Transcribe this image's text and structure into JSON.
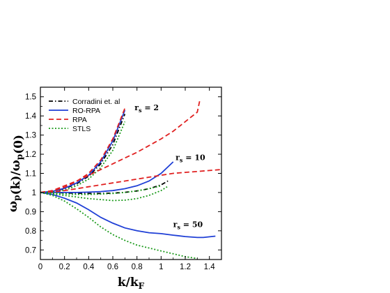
{
  "chart_data": {
    "type": "line",
    "xlabel": "k/k_F",
    "ylabel": "ω_p(k)/ω_p(0)",
    "xlim": [
      0,
      1.5
    ],
    "ylim": [
      0.65,
      1.55
    ],
    "x_ticks": [
      0,
      0.2,
      0.4,
      0.6,
      0.8,
      1,
      1.2,
      1.4
    ],
    "x_tick_labels": [
      "0",
      "0.2",
      "0.4",
      "0.6",
      "0.8",
      "1",
      "1.2",
      "1.4"
    ],
    "y_ticks": [
      0.7,
      0.8,
      0.9,
      1,
      1.1,
      1.2,
      1.3,
      1.4,
      1.5
    ],
    "y_tick_labels": [
      "0.7",
      "0.8",
      "0.9",
      "1",
      "1.1",
      "1.2",
      "1.3",
      "1.4",
      "1.5"
    ],
    "legend_position": "top-left",
    "annotations": [
      {
        "text": "r_s = 2",
        "x": 0.78,
        "y": 1.43
      },
      {
        "text": "r_s = 10",
        "x": 1.12,
        "y": 1.17
      },
      {
        "text": "r_s = 50",
        "x": 1.1,
        "y": 0.82
      }
    ],
    "series": [
      {
        "name": "Corradini et. al",
        "color": "#000000",
        "dash": "dashdot",
        "group": "r_s=2",
        "points": [
          [
            0,
            1
          ],
          [
            0.1,
            1.005
          ],
          [
            0.2,
            1.02
          ],
          [
            0.3,
            1.045
          ],
          [
            0.4,
            1.085
          ],
          [
            0.5,
            1.15
          ],
          [
            0.6,
            1.25
          ],
          [
            0.7,
            1.41
          ]
        ]
      },
      {
        "name": "RO-RPA",
        "color": "#1f3fd6",
        "dash": "solid",
        "group": "r_s=2",
        "points": [
          [
            0,
            1
          ],
          [
            0.1,
            1.006
          ],
          [
            0.2,
            1.022
          ],
          [
            0.3,
            1.05
          ],
          [
            0.4,
            1.09
          ],
          [
            0.5,
            1.16
          ],
          [
            0.6,
            1.27
          ],
          [
            0.7,
            1.43
          ]
        ]
      },
      {
        "name": "RPA",
        "color": "#e02020",
        "dash": "dashed",
        "group": "r_s=2",
        "points": [
          [
            0,
            1
          ],
          [
            0.1,
            1.008
          ],
          [
            0.2,
            1.028
          ],
          [
            0.3,
            1.058
          ],
          [
            0.4,
            1.1
          ],
          [
            0.5,
            1.17
          ],
          [
            0.6,
            1.28
          ],
          [
            0.7,
            1.44
          ]
        ]
      },
      {
        "name": "STLS",
        "color": "#1a9a1a",
        "dash": "dotted",
        "group": "r_s=2",
        "points": [
          [
            0,
            1
          ],
          [
            0.1,
            1.002
          ],
          [
            0.2,
            1.012
          ],
          [
            0.3,
            1.035
          ],
          [
            0.4,
            1.07
          ],
          [
            0.5,
            1.13
          ],
          [
            0.6,
            1.22
          ],
          [
            0.7,
            1.37
          ]
        ]
      },
      {
        "name": "Corradini et. al",
        "color": "#000000",
        "dash": "dashdot",
        "group": "r_s=10",
        "points": [
          [
            0,
            1
          ],
          [
            0.1,
            1
          ],
          [
            0.2,
            0.998
          ],
          [
            0.3,
            0.996
          ],
          [
            0.4,
            0.995
          ],
          [
            0.5,
            0.995
          ],
          [
            0.6,
            0.997
          ],
          [
            0.7,
            1.001
          ],
          [
            0.8,
            1.008
          ],
          [
            0.9,
            1.02
          ],
          [
            1.0,
            1.04
          ],
          [
            1.07,
            1.065
          ]
        ]
      },
      {
        "name": "RO-RPA",
        "color": "#1f3fd6",
        "dash": "solid",
        "group": "r_s=10",
        "points": [
          [
            0,
            1
          ],
          [
            0.1,
            1
          ],
          [
            0.2,
            1
          ],
          [
            0.3,
            1
          ],
          [
            0.4,
            1.002
          ],
          [
            0.5,
            1.005
          ],
          [
            0.6,
            1.01
          ],
          [
            0.7,
            1.02
          ],
          [
            0.8,
            1.035
          ],
          [
            0.9,
            1.06
          ],
          [
            1.0,
            1.1
          ],
          [
            1.1,
            1.16
          ]
        ]
      },
      {
        "name": "RPA",
        "color": "#e02020",
        "dash": "dashed",
        "group": "r_s=10",
        "points": [
          [
            0,
            1
          ],
          [
            0.1,
            1.003
          ],
          [
            0.2,
            1.01
          ],
          [
            0.3,
            1.02
          ],
          [
            0.4,
            1.03
          ],
          [
            0.5,
            1.04
          ],
          [
            0.6,
            1.05
          ],
          [
            0.7,
            1.06
          ],
          [
            0.8,
            1.07
          ],
          [
            0.9,
            1.08
          ],
          [
            1.0,
            1.09
          ],
          [
            1.1,
            1.1
          ],
          [
            1.2,
            1.105
          ],
          [
            1.3,
            1.11
          ],
          [
            1.4,
            1.115
          ],
          [
            1.5,
            1.12
          ]
        ]
      },
      {
        "name": "STLS",
        "color": "#1a9a1a",
        "dash": "dotted",
        "group": "r_s=10",
        "points": [
          [
            0,
            1
          ],
          [
            0.1,
            0.998
          ],
          [
            0.2,
            0.993
          ],
          [
            0.3,
            0.99
          ],
          [
            0.4,
            0.99
          ],
          [
            0.5,
            0.992
          ],
          [
            0.6,
            0.995
          ],
          [
            0.7,
            1
          ],
          [
            0.8,
            1.008
          ],
          [
            0.9,
            1.02
          ],
          [
            1.0,
            1.035
          ]
        ]
      },
      {
        "name": "RPA",
        "color": "#e02020",
        "dash": "dashed",
        "group": "upper",
        "points": [
          [
            0,
            1
          ],
          [
            0.1,
            1.01
          ],
          [
            0.2,
            1.035
          ],
          [
            0.3,
            1.06
          ],
          [
            0.4,
            1.09
          ],
          [
            0.5,
            1.12
          ],
          [
            0.6,
            1.15
          ],
          [
            0.7,
            1.18
          ],
          [
            0.8,
            1.21
          ],
          [
            0.9,
            1.245
          ],
          [
            1.0,
            1.28
          ],
          [
            1.1,
            1.32
          ],
          [
            1.2,
            1.37
          ],
          [
            1.3,
            1.42
          ],
          [
            1.32,
            1.48
          ]
        ]
      },
      {
        "name": "RO-RPA",
        "color": "#1f3fd6",
        "dash": "solid",
        "group": "r_s=50",
        "points": [
          [
            0,
            1
          ],
          [
            0.1,
            0.99
          ],
          [
            0.2,
            0.97
          ],
          [
            0.3,
            0.945
          ],
          [
            0.4,
            0.91
          ],
          [
            0.5,
            0.87
          ],
          [
            0.6,
            0.84
          ],
          [
            0.7,
            0.815
          ],
          [
            0.8,
            0.8
          ],
          [
            0.9,
            0.79
          ],
          [
            1.0,
            0.785
          ],
          [
            1.1,
            0.777
          ],
          [
            1.2,
            0.77
          ],
          [
            1.3,
            0.765
          ],
          [
            1.35,
            0.765
          ],
          [
            1.45,
            0.772
          ]
        ]
      },
      {
        "name": "STLS",
        "color": "#1a9a1a",
        "dash": "dotted",
        "group": "r_s=50",
        "points": [
          [
            0,
            1
          ],
          [
            0.1,
            0.985
          ],
          [
            0.2,
            0.955
          ],
          [
            0.3,
            0.915
          ],
          [
            0.4,
            0.87
          ],
          [
            0.5,
            0.82
          ],
          [
            0.6,
            0.78
          ],
          [
            0.7,
            0.75
          ],
          [
            0.8,
            0.725
          ],
          [
            0.9,
            0.71
          ],
          [
            1.0,
            0.695
          ],
          [
            1.1,
            0.68
          ],
          [
            1.2,
            0.665
          ],
          [
            1.3,
            0.655
          ]
        ]
      },
      {
        "name": "STLS",
        "color": "#1a9a1a",
        "dash": "dotted",
        "group": "r_s=10-lower",
        "points": [
          [
            0,
            1
          ],
          [
            0.2,
            0.985
          ],
          [
            0.4,
            0.968
          ],
          [
            0.6,
            0.958
          ],
          [
            0.7,
            0.96
          ],
          [
            0.8,
            0.968
          ],
          [
            0.9,
            0.985
          ],
          [
            1.0,
            1.01
          ],
          [
            1.05,
            1.03
          ]
        ]
      }
    ],
    "legend": [
      {
        "label": "Corradini et. al",
        "color": "#000000",
        "dash": "dashdot"
      },
      {
        "label": "RO-RPA",
        "color": "#1f3fd6",
        "dash": "solid"
      },
      {
        "label": "RPA",
        "color": "#e02020",
        "dash": "dashed"
      },
      {
        "label": "STLS",
        "color": "#1a9a1a",
        "dash": "dotted"
      }
    ]
  }
}
